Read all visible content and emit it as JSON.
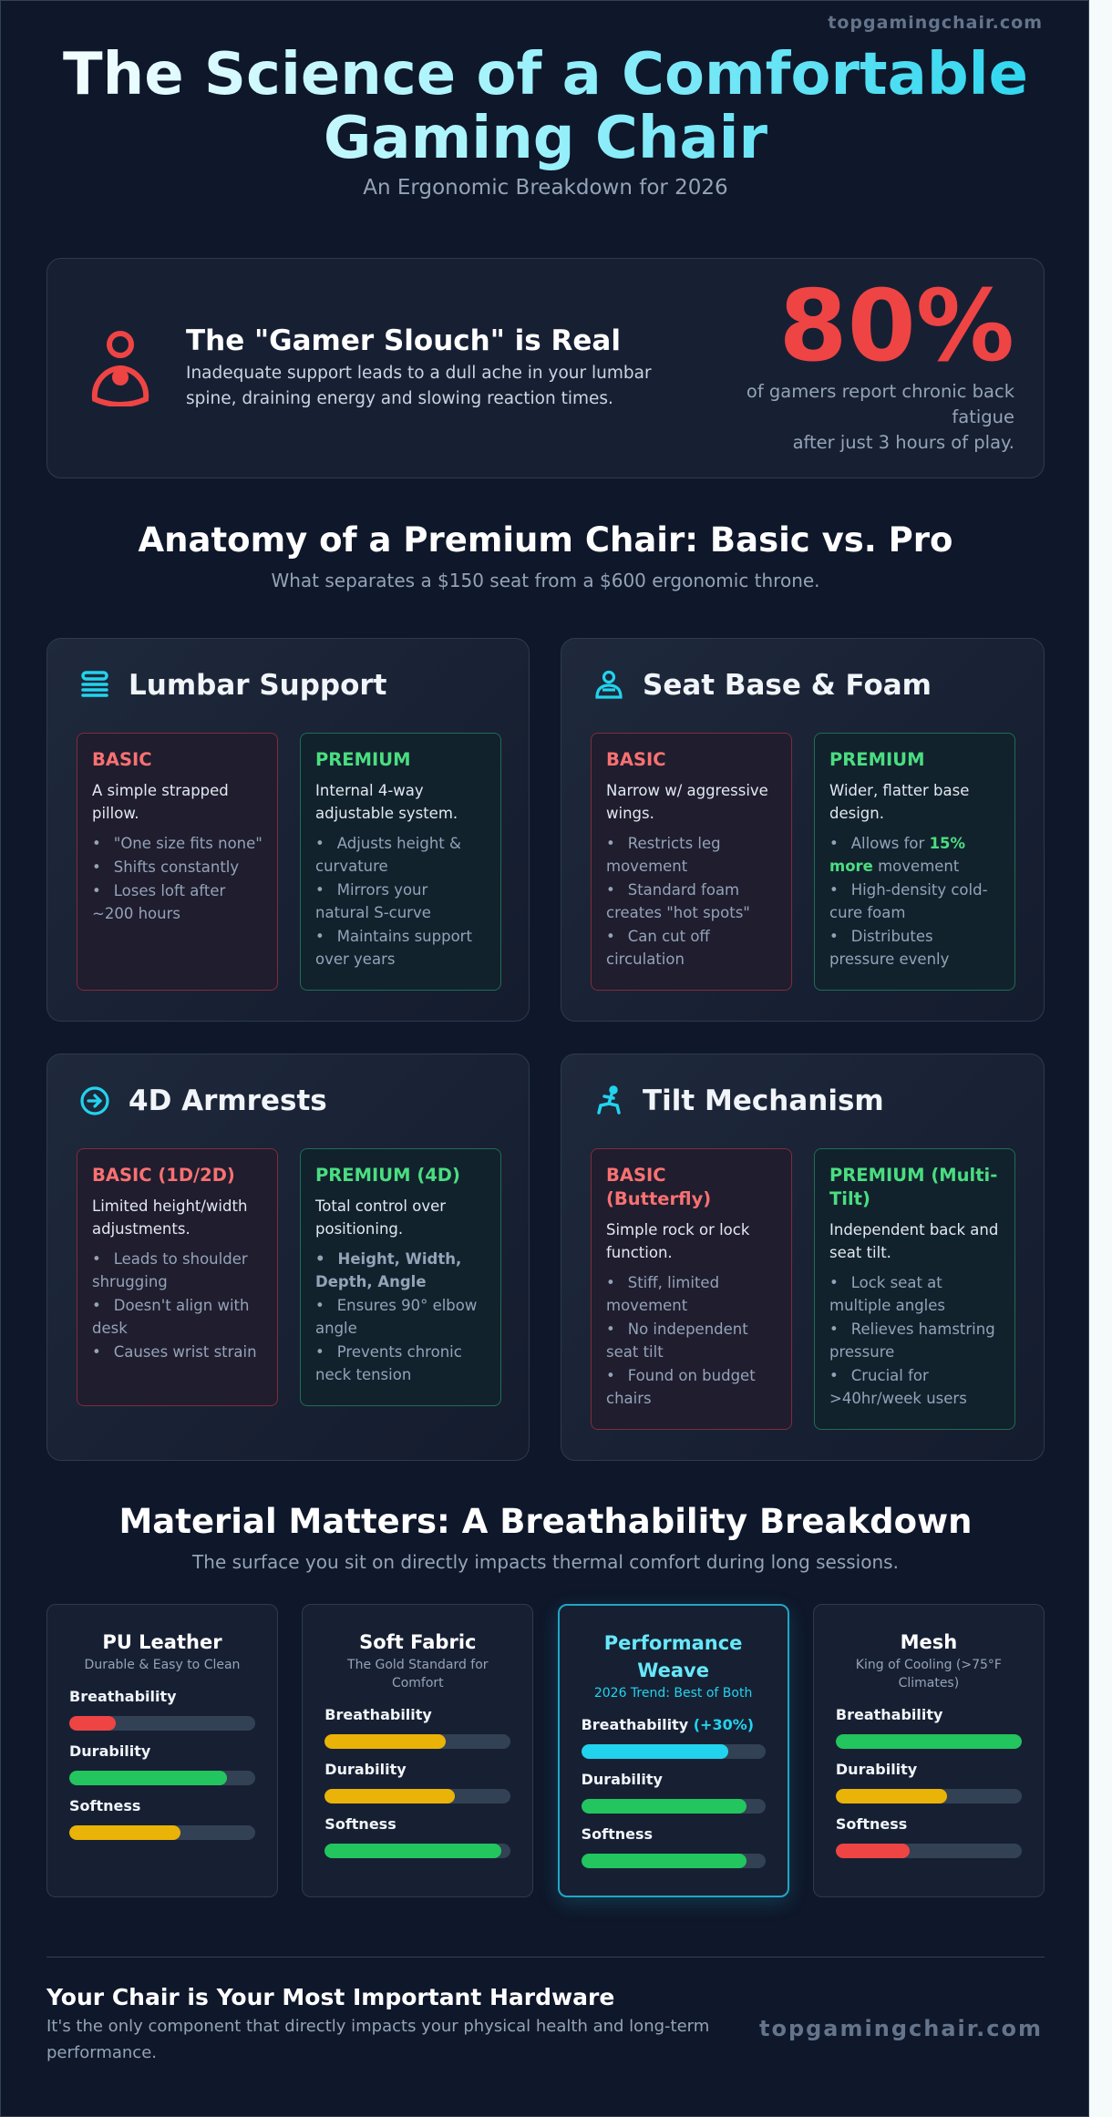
{
  "watermark": "topgamingchair.com",
  "header": {
    "title_line1": "The Science of a Comfortable",
    "title_line2": "Gaming Chair",
    "subtitle": "An Ergonomic Breakdown for 2026"
  },
  "stat": {
    "icon": "person-slouch-icon",
    "title": "The \"Gamer Slouch\" is Real",
    "desc": "Inadequate support leads to a dull ache in your lumbar spine, draining energy and slowing reaction times.",
    "value": "80%",
    "caption_line1": "of gamers report chronic back fatigue",
    "caption_line2": "after just 3 hours of play.",
    "color": "#ef4444"
  },
  "anatomy": {
    "title": "Anatomy of a Premium Chair: Basic vs. Pro",
    "subtitle": "What separates a $150 seat from a $600 ergonomic throne.",
    "cards": [
      {
        "title": "Lumbar Support",
        "icon": "lumbar-stack-icon",
        "basic": {
          "label": "BASIC",
          "desc": "A simple strapped pillow.",
          "bullets": [
            "\"One size fits none\"",
            "Shifts constantly",
            "Loses loft after ~200 hours"
          ]
        },
        "premium": {
          "label": "PREMIUM",
          "desc": "Internal 4-way adjustable system.",
          "bullets": [
            "Adjusts height & curvature",
            "Mirrors your natural S-curve",
            "Maintains support over years"
          ]
        }
      },
      {
        "title": "Seat Base & Foam",
        "icon": "seat-user-icon",
        "basic": {
          "label": "BASIC",
          "desc": "Narrow w/ aggressive wings.",
          "bullets": [
            "Restricts leg movement",
            "Standard foam creates \"hot spots\"",
            "Can cut off circulation"
          ]
        },
        "premium": {
          "label": "PREMIUM",
          "desc": "Wider, flatter base design.",
          "bullet1_prefix": "Allows for ",
          "bullet1_highlight": "15% more",
          "bullet1_suffix": " movement",
          "bullets": [
            "High-density cold-cure foam",
            "Distributes pressure evenly"
          ]
        }
      },
      {
        "title": "4D Armrests",
        "icon": "arrow-circle-icon",
        "basic": {
          "label": "BASIC (1D/2D)",
          "desc": "Limited height/width adjustments.",
          "bullets": [
            "Leads to shoulder shrugging",
            "Doesn't align with desk",
            "Causes wrist strain"
          ]
        },
        "premium": {
          "label": "PREMIUM (4D)",
          "desc": "Total control over positioning.",
          "highlight_bullet": "Height, Width, Depth, Angle",
          "bullets": [
            "Ensures 90° elbow angle",
            "Prevents chronic neck tension"
          ]
        }
      },
      {
        "title": "Tilt Mechanism",
        "icon": "tilt-figure-icon",
        "basic": {
          "label": "BASIC (Butterfly)",
          "desc": "Simple rock or lock function.",
          "bullets": [
            "Stiff, limited movement",
            "No independent seat tilt",
            "Found on budget chairs"
          ]
        },
        "premium": {
          "label": "PREMIUM (Multi-Tilt)",
          "desc": "Independent back and seat tilt.",
          "bullets": [
            "Lock seat at multiple angles",
            "Relieves hamstring pressure",
            "Crucial for >40hr/week users"
          ]
        }
      }
    ]
  },
  "materials": {
    "title": "Material Matters: A Breathability Breakdown",
    "subtitle": "The surface you sit on directly impacts thermal comfort during long sessions.",
    "labels": {
      "breath": "Breathability",
      "dur": "Durability",
      "soft": "Softness"
    },
    "colors": {
      "red": "#ef4444",
      "yellow": "#eab308",
      "green": "#22c55e",
      "cyan": "#22d3ee"
    },
    "items": [
      {
        "name": "PU Leather",
        "sub": "Durable & Easy to Clean",
        "breath_note": "",
        "bars": [
          {
            "pct": 25,
            "color": "red"
          },
          {
            "pct": 85,
            "color": "green"
          },
          {
            "pct": 60,
            "color": "yellow"
          }
        ]
      },
      {
        "name": "Soft Fabric",
        "sub": "The Gold Standard for Comfort",
        "breath_note": "",
        "bars": [
          {
            "pct": 65,
            "color": "yellow"
          },
          {
            "pct": 70,
            "color": "yellow"
          },
          {
            "pct": 95,
            "color": "green"
          }
        ]
      },
      {
        "name": "Performance Weave",
        "sub": "2026 Trend: Best of Both",
        "breath_note": "(+30%)",
        "featured": true,
        "bars": [
          {
            "pct": 80,
            "color": "cyan"
          },
          {
            "pct": 90,
            "color": "green"
          },
          {
            "pct": 90,
            "color": "green"
          }
        ]
      },
      {
        "name": "Mesh",
        "sub": "King of Cooling (>75°F Climates)",
        "breath_note": "",
        "bars": [
          {
            "pct": 100,
            "color": "green"
          },
          {
            "pct": 60,
            "color": "yellow"
          },
          {
            "pct": 40,
            "color": "red"
          }
        ]
      }
    ]
  },
  "footer": {
    "title": "Your Chair is Your Most Important Hardware",
    "text": "It's the only component that directly impacts your physical health and long-term performance.",
    "watermark": "topgamingchair.com"
  }
}
